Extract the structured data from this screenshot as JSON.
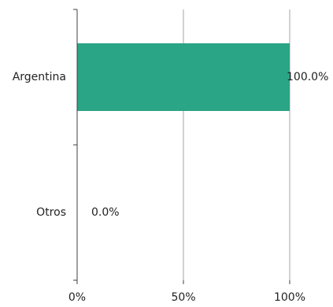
{
  "chart_data": {
    "type": "bar",
    "orientation": "horizontal",
    "categories": [
      "Argentina",
      "Otros"
    ],
    "values": [
      100.0,
      0.0
    ],
    "data_labels": [
      "100.0%",
      "0.0%"
    ],
    "xlim": [
      0,
      100
    ],
    "x_ticks": [
      0,
      50,
      100
    ],
    "x_tick_labels": [
      "0%",
      "50%",
      "100%"
    ],
    "title": "",
    "xlabel": "",
    "ylabel": "",
    "grid": "vertical",
    "legend": "none",
    "bar_color": "#2aa585"
  }
}
